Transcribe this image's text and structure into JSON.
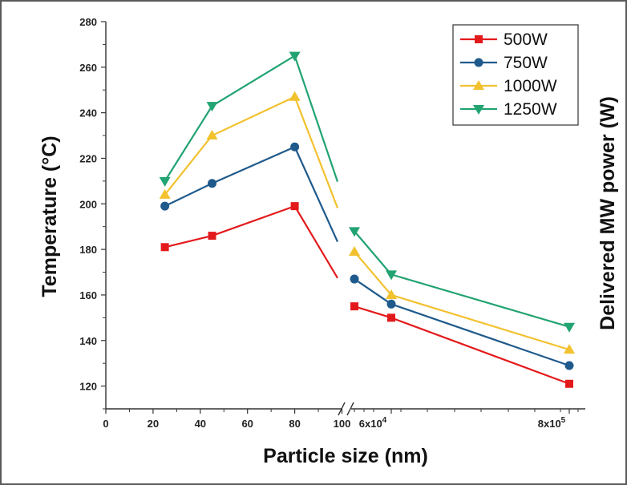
{
  "chart_data": {
    "type": "line",
    "x_positions": [
      25,
      45,
      80,
      "6x10^4",
      "7x10^4",
      "8x10^5"
    ],
    "series": [
      {
        "name": "500W",
        "color": "#e31a1c",
        "marker": "square",
        "values": [
          181,
          186,
          199,
          155,
          150,
          121
        ]
      },
      {
        "name": "750W",
        "color": "#1f5a8c",
        "marker": "circle",
        "values": [
          199,
          209,
          225,
          167,
          156,
          129
        ]
      },
      {
        "name": "1000W",
        "color": "#f2c12e",
        "marker": "triangle-up",
        "values": [
          204,
          230,
          247,
          179,
          160,
          136
        ]
      },
      {
        "name": "1250W",
        "color": "#22a372",
        "marker": "triangle-down",
        "values": [
          210,
          243,
          265,
          188,
          169,
          146
        ]
      }
    ],
    "xlabel": "Particle size (nm)",
    "ylabel": "Temperature (°C)",
    "ylabel_right": "Delivered MW power (W)",
    "ylim": [
      110,
      280
    ],
    "xlim_left": [
      0,
      105
    ],
    "y_ticks": [
      120,
      140,
      160,
      180,
      200,
      220,
      240,
      260,
      280
    ],
    "x_ticks_left": [
      0,
      20,
      40,
      60,
      80,
      100
    ],
    "x_tick_labels_right": [
      {
        "base": "6x10",
        "exp": "4"
      },
      {
        "base": "8x10",
        "exp": "5"
      }
    ],
    "axis_break": "//",
    "legend_position": "top-right",
    "grid": false
  }
}
